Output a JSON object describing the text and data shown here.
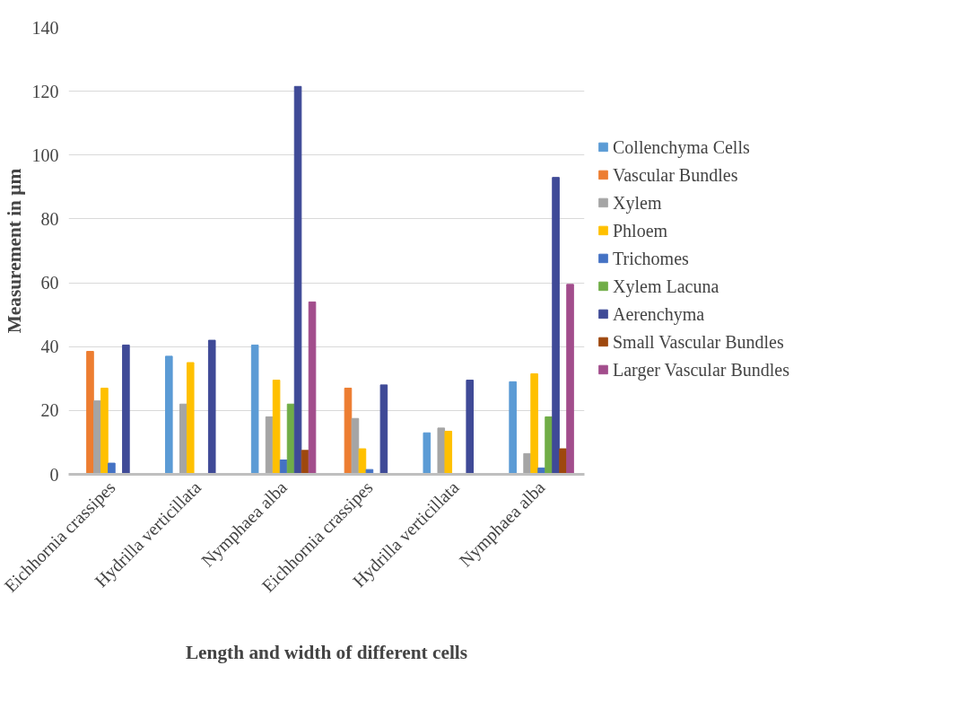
{
  "chart_data": {
    "type": "bar",
    "xlabel": "Length and width of different cells",
    "ylabel": "Measurement in µm",
    "categories": [
      "Eichhornia crassipes",
      "Hydrilla verticillata",
      "Nymphaea alba",
      "Eichhornia crassipes",
      "Hydrilla verticillata",
      "Nymphaea alba"
    ],
    "series": [
      {
        "name": "Collenchyma Cells",
        "color": "#5b9bd5",
        "values": [
          null,
          37,
          40.5,
          null,
          13,
          29
        ]
      },
      {
        "name": "Vascular Bundles",
        "color": "#ed7d31",
        "values": [
          38.5,
          null,
          null,
          27,
          null,
          null
        ]
      },
      {
        "name": "Xylem",
        "color": "#a5a5a5",
        "values": [
          23,
          22,
          18,
          17.5,
          14.5,
          6.5
        ]
      },
      {
        "name": "Phloem",
        "color": "#ffc000",
        "values": [
          27,
          35,
          29.5,
          8,
          13.5,
          31.5
        ]
      },
      {
        "name": "Trichomes",
        "color": "#4472c4",
        "values": [
          3.5,
          null,
          4.5,
          1.5,
          null,
          2
        ]
      },
      {
        "name": "Xylem Lacuna",
        "color": "#70ad47",
        "values": [
          null,
          null,
          22,
          null,
          null,
          18
        ]
      },
      {
        "name": "Aerenchyma",
        "color": "#3f4a97",
        "values": [
          40.5,
          42,
          121.5,
          28,
          29.5,
          93
        ]
      },
      {
        "name": "Small Vascular Bundles",
        "color": "#9e480e",
        "values": [
          null,
          null,
          7.5,
          null,
          null,
          8
        ]
      },
      {
        "name": "Larger Vascular Bundles",
        "color": "#a24d8c",
        "values": [
          null,
          null,
          54,
          null,
          null,
          59.5
        ]
      }
    ],
    "ylim": [
      0,
      140
    ],
    "yticks": [
      0,
      20,
      40,
      60,
      80,
      100,
      120,
      140
    ],
    "grid": "y",
    "legend": "right"
  }
}
